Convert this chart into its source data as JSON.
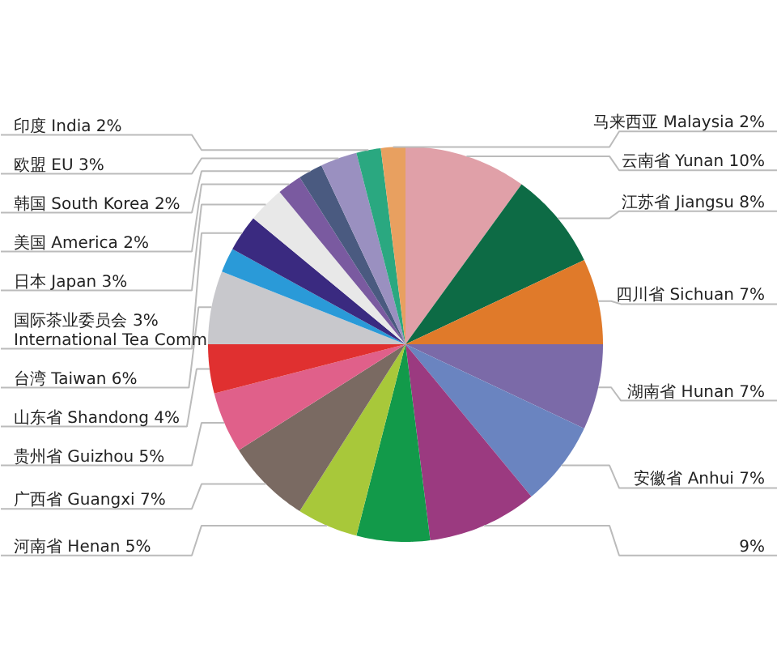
{
  "chart_data": {
    "type": "pie",
    "categories": [
      "云南省 Yunan",
      "江苏省 Jiangsu",
      "四川省 Sichuan",
      "湖南省 Hunan",
      "安徽省 Anhui",
      null,
      null,
      "河南省 Henan",
      "广西省 Guangxi",
      "贵州省 Guizhou",
      "山东省 Shandong",
      "台湾 Taiwan",
      null,
      "国际茶业委员会\nInternational Tea Comm",
      "日本 Japan",
      "美国 America",
      "韩国 South Korea",
      "欧盟 EU",
      "印度 India",
      "马来西亚 Malaysia"
    ],
    "values": [
      10,
      8,
      7,
      7,
      7,
      9,
      6,
      5,
      7,
      5,
      4,
      6,
      2,
      3,
      3,
      2,
      2,
      3,
      2,
      2
    ],
    "value_labels": [
      "10%",
      "8%",
      "7%",
      "7%",
      "7%",
      "9%",
      null,
      "5%",
      "7%",
      "5%",
      "4%",
      "6%",
      null,
      "3%",
      "3%",
      "2%",
      "2%",
      "3%",
      "2%",
      "2%"
    ],
    "colors": [
      "#e0a0a8",
      "#0d6b45",
      "#e07a2a",
      "#7b6aa8",
      "#6a84c0",
      "#9b3a80",
      "#129a4a",
      "#a8c83a",
      "#7a6a62",
      "#e0608a",
      "#e03030",
      "#c8c8cc",
      "#2a9ad8",
      "#3a2a80",
      "#e8e8e8",
      "#7a5aa0",
      "#4a5a80",
      "#9a90c0",
      "#2aa880",
      "#e8a060"
    ]
  }
}
